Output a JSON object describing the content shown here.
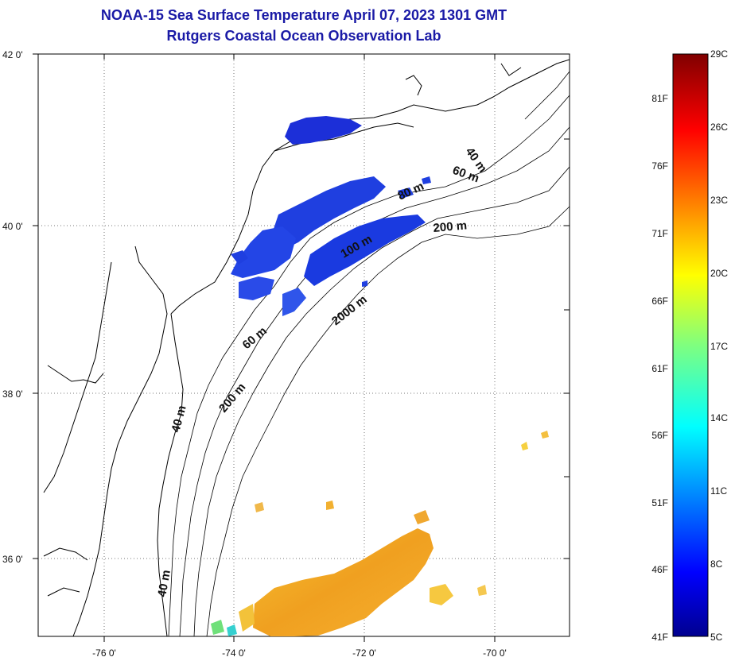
{
  "title": "NOAA-15 Sea Surface Temperature April 07, 2023 1301 GMT",
  "subtitle": "Rutgers Coastal Ocean Observation Lab",
  "map": {
    "lat_labels": [
      "42 0'",
      "40 0'",
      "38 0'",
      "36 0'"
    ],
    "lon_labels": [
      "-76 0'",
      "-74 0'",
      "-72 0'",
      "-70 0'"
    ],
    "lat_range": [
      35,
      42
    ],
    "lon_range": [
      -77,
      -69
    ],
    "grid": "dotted",
    "depth_labels": [
      "40 m",
      "60 m",
      "80 m",
      "200 m",
      "100 m",
      "2000 m",
      "60 m",
      "200 m",
      "40 m",
      "40 m"
    ]
  },
  "colorbar": {
    "celsius": [
      "29C",
      "26C",
      "23C",
      "20C",
      "17C",
      "14C",
      "11C",
      "8C",
      "5C"
    ],
    "fahrenheit": [
      "81F",
      "76F",
      "71F",
      "66F",
      "61F",
      "56F",
      "51F",
      "46F",
      "41F"
    ],
    "range_c": [
      5,
      29
    ]
  },
  "colors": {
    "title": "#1a1aa6",
    "cold": "#1f3fe0",
    "warm": "#f0a020"
  }
}
